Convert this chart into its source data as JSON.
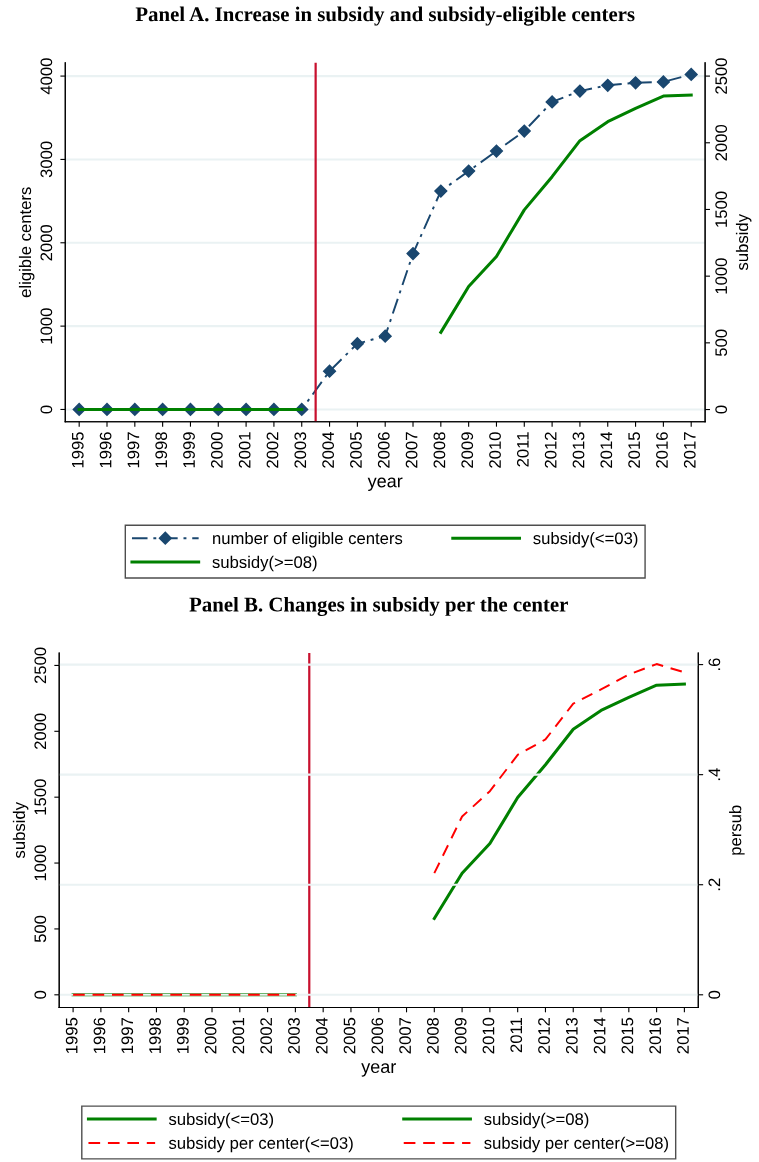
{
  "chart_data": [
    {
      "type": "line",
      "title": "Panel A. Increase in subsidy and subsidy-eligible centers",
      "xlabel": "year",
      "ylabel": "eligible centers",
      "y2label": "subsidy",
      "x": [
        1995,
        1996,
        1997,
        1998,
        1999,
        2000,
        2001,
        2002,
        2003,
        2004,
        2005,
        2006,
        2007,
        2008,
        2009,
        2010,
        2011,
        2012,
        2013,
        2014,
        2015,
        2016,
        2017
      ],
      "xlim": [
        1994.5,
        2017.5
      ],
      "xticks": [
        1995,
        1996,
        1997,
        1998,
        1999,
        2000,
        2001,
        2002,
        2003,
        2004,
        2005,
        2006,
        2007,
        2008,
        2009,
        2010,
        2011,
        2012,
        2013,
        2014,
        2015,
        2016,
        2017
      ],
      "ylim": [
        -148,
        4160
      ],
      "yticks": [
        0,
        1000,
        2000,
        3000,
        4000
      ],
      "y2lim": [
        -92,
        2600
      ],
      "y2ticks": [
        0,
        500,
        1000,
        1500,
        2000,
        2500
      ],
      "grid": "y",
      "legend": "bottom",
      "ref_lines": [
        {
          "axis": "x",
          "value": 2003.5,
          "color": "#c8102e",
          "line_style": "solid"
        }
      ],
      "series": [
        {
          "name": "number of eligible centers",
          "color": "#1a476f",
          "marker": "diamond",
          "line_style": "dashdot",
          "values": [
            0,
            0,
            0,
            0,
            0,
            0,
            0,
            0,
            0,
            460,
            790,
            880,
            1870,
            2620,
            2860,
            3100,
            3340,
            3690,
            3820,
            3890,
            3920,
            3930,
            4020
          ]
        },
        {
          "name": "subsidy(<=03)",
          "color": "#008000",
          "axis": "y2",
          "x": [
            1995,
            1996,
            1997,
            1998,
            1999,
            2000,
            2001,
            2002,
            2003
          ],
          "values": [
            0,
            0,
            0,
            0,
            0,
            0,
            0,
            0,
            0
          ]
        },
        {
          "name": "subsidy(>=08)",
          "color": "#008000",
          "axis": "y2",
          "x": [
            2008,
            2009,
            2010,
            2011,
            2012,
            2013,
            2014,
            2015,
            2016,
            2017
          ],
          "values": [
            579,
            923,
            1148,
            1497,
            1746,
            2016,
            2158,
            2258,
            2350,
            2358
          ]
        }
      ]
    },
    {
      "type": "line",
      "title": "Panel B. Changes in subsidy per the center",
      "xlabel": "year",
      "ylabel": "subsidy",
      "y2label": "persub",
      "x": [
        1995,
        1996,
        1997,
        1998,
        1999,
        2000,
        2001,
        2002,
        2003
      ],
      "xlim": [
        1994.5,
        2017.5
      ],
      "xticks": [
        1995,
        1996,
        1997,
        1998,
        1999,
        2000,
        2001,
        2002,
        2003,
        2004,
        2005,
        2006,
        2007,
        2008,
        2009,
        2010,
        2011,
        2012,
        2013,
        2014,
        2015,
        2016,
        2017
      ],
      "ylim": [
        -96,
        2594
      ],
      "yticks": [
        0,
        500,
        1000,
        1500,
        2000,
        2500
      ],
      "y2lim": [
        -0.023,
        0.621
      ],
      "y2ticks": [
        {
          "value": 0,
          "label": "0"
        },
        {
          "value": 0.2,
          "label": ".2"
        },
        {
          "value": 0.4,
          "label": ".4"
        },
        {
          "value": 0.6,
          "label": ".6"
        }
      ],
      "grid": "y2",
      "legend": "bottom",
      "ref_lines": [
        {
          "axis": "x",
          "value": 2003.5,
          "color": "#c8102e",
          "line_style": "solid"
        }
      ],
      "series": [
        {
          "name": "subsidy(<=03)",
          "color": "#008000",
          "values": [
            0,
            0,
            0,
            0,
            0,
            0,
            0,
            0,
            0
          ]
        },
        {
          "name": "subsidy(>=08)",
          "color": "#008000",
          "x": [
            2008,
            2009,
            2010,
            2011,
            2012,
            2013,
            2014,
            2015,
            2016,
            2017
          ],
          "values": [
            579,
            923,
            1148,
            1497,
            1746,
            2016,
            2158,
            2258,
            2350,
            2358
          ]
        },
        {
          "name": "subsidy per center(<=03)",
          "color": "#ff0000",
          "line_style": "dashed",
          "axis": "y2",
          "values": [
            0,
            0,
            0,
            0,
            0,
            0,
            0,
            0,
            0
          ]
        },
        {
          "name": "subsidy per center(>=08)",
          "color": "#ff0000",
          "line_style": "dashed",
          "axis": "y2",
          "x": [
            2008,
            2009,
            2010,
            2011,
            2012,
            2013,
            2014,
            2015,
            2016,
            2017
          ],
          "values": [
            0.221,
            0.324,
            0.37,
            0.436,
            0.464,
            0.529,
            0.555,
            0.582,
            0.601,
            0.586
          ]
        }
      ]
    }
  ]
}
